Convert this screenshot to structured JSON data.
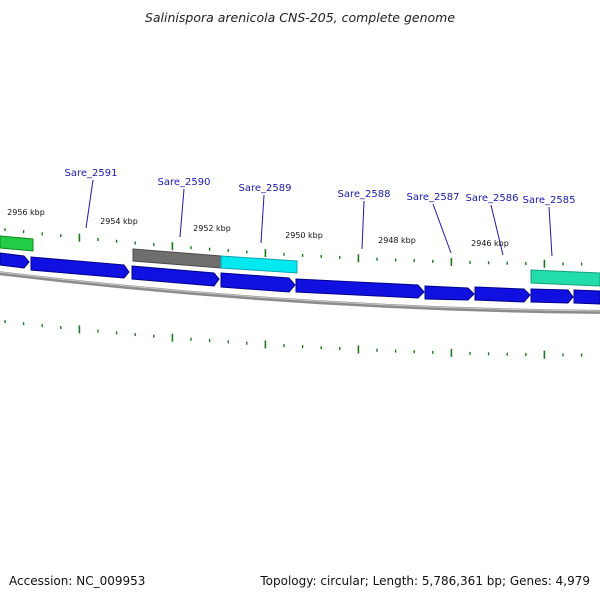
{
  "title": "Salinispora arenicola CNS-205, complete genome",
  "footer": {
    "accession": "Accession: NC_009953",
    "summary": "Topology: circular; Length: 5,786,361 bp; Genes: 4,979"
  },
  "colors": {
    "forward_gene": "#1010e0",
    "green_feature": "#22cc44",
    "teal_feature": "#22ddaa",
    "cyan_feature": "#00e8f0",
    "gray_feature": "#6e6e6e",
    "backbone": "#8c8c8c",
    "gene_label": "#1a1aaa",
    "tick": "#1a7a1a"
  },
  "scale_labels": [
    "2956 kbp",
    "2954 kbp",
    "2952 kbp",
    "2950 kbp",
    "2948 kbp",
    "2946 kbp"
  ],
  "gene_labels": [
    "Sare_2591",
    "Sare_2590",
    "Sare_2589",
    "Sare_2588",
    "Sare_2587",
    "Sare_2586",
    "Sare_2585"
  ]
}
